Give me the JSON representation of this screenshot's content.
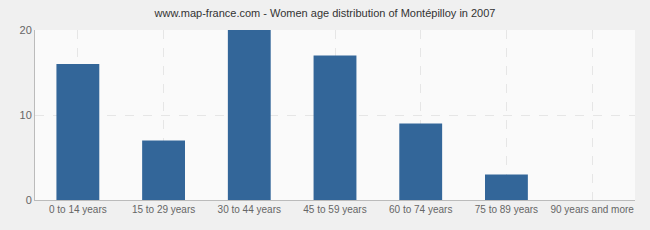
{
  "chart_data": {
    "type": "bar",
    "title": "www.map-france.com - Women age distribution of Montépilloy in 2007",
    "categories": [
      "0 to 14 years",
      "15 to 29 years",
      "30 to 44 years",
      "45 to 59 years",
      "60 to 74 years",
      "75 to 89 years",
      "90 years and more"
    ],
    "values": [
      16,
      7,
      20,
      17,
      9,
      3,
      0
    ],
    "color": "#336699",
    "ylim": [
      0,
      20
    ],
    "yticks": [
      0,
      10,
      20
    ],
    "grid": true
  }
}
